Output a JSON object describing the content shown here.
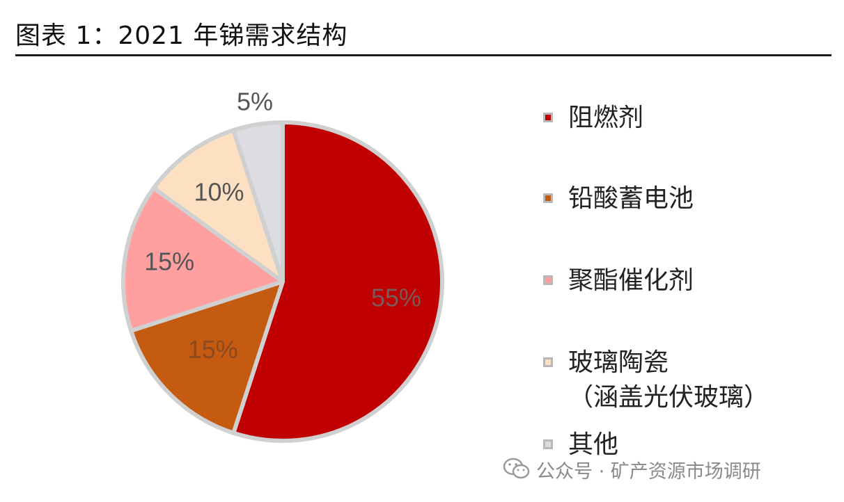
{
  "title": "图表 1：2021 年锑需求结构",
  "chart_data": {
    "type": "pie",
    "title": "图表 1：2021 年锑需求结构",
    "slices": [
      {
        "label": "阻燃剂",
        "label_line2": "",
        "value": 55,
        "display": "55%",
        "color": "#c00000"
      },
      {
        "label": "铅酸蓄电池",
        "label_line2": "",
        "value": 15,
        "display": "15%",
        "color": "#c55a11"
      },
      {
        "label": "聚酯催化剂",
        "label_line2": "",
        "value": 15,
        "display": "15%",
        "color": "#ff9f9f"
      },
      {
        "label": "玻璃陶瓷",
        "label_line2": "（涵盖光伏玻璃）",
        "value": 10,
        "display": "10%",
        "color": "#fde0c2"
      },
      {
        "label": "其他",
        "label_line2": "",
        "value": 5,
        "display": "5%",
        "color": "#dcdce2"
      }
    ],
    "legend_position": "right",
    "start": "12 o'clock, clockwise"
  },
  "watermark": {
    "text": "公众号 · 矿产资源市场调研",
    "icon": "wechat-icon"
  }
}
